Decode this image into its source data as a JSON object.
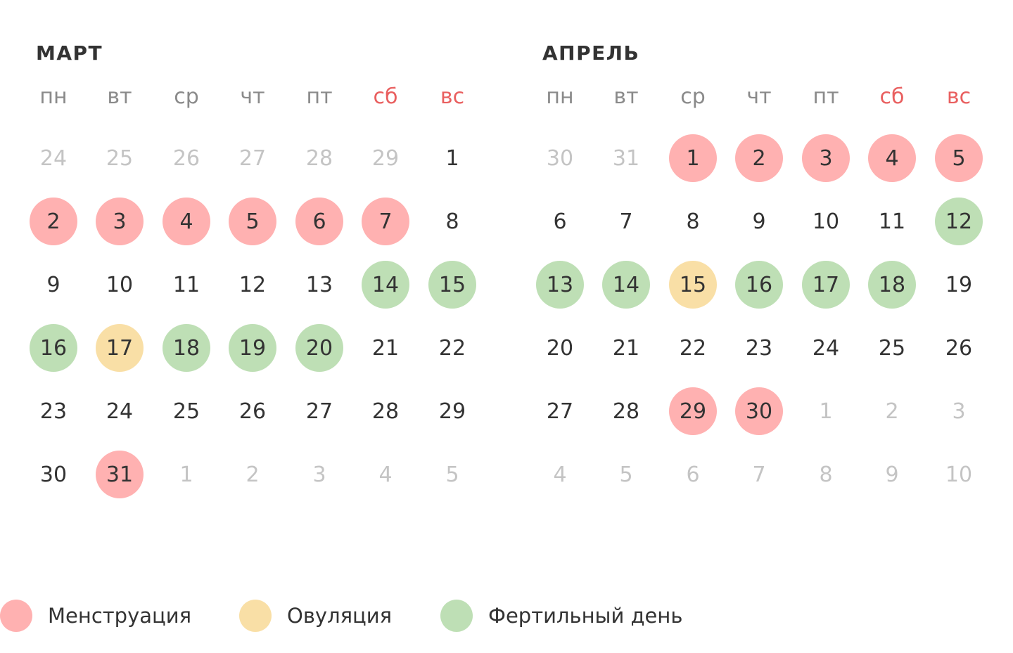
{
  "colors": {
    "menstruation": "#FFB1B1",
    "ovulation": "#F9DFA6",
    "fertile": "#BEDFB5",
    "text": "#333333",
    "muted": "#C4C4C4",
    "weekday": "#8A8A8A",
    "weekend": "#E95F5F"
  },
  "weekdays": [
    "пн",
    "вт",
    "ср",
    "чт",
    "пт",
    "сб",
    "вс"
  ],
  "months": [
    {
      "title": "МАРТ",
      "weeks": [
        [
          {
            "d": "24",
            "t": "muted"
          },
          {
            "d": "25",
            "t": "muted"
          },
          {
            "d": "26",
            "t": "muted"
          },
          {
            "d": "27",
            "t": "muted"
          },
          {
            "d": "28",
            "t": "muted"
          },
          {
            "d": "29",
            "t": "muted"
          },
          {
            "d": "1",
            "t": ""
          }
        ],
        [
          {
            "d": "2",
            "t": "menstruation"
          },
          {
            "d": "3",
            "t": "menstruation"
          },
          {
            "d": "4",
            "t": "menstruation"
          },
          {
            "d": "5",
            "t": "menstruation"
          },
          {
            "d": "6",
            "t": "menstruation"
          },
          {
            "d": "7",
            "t": "menstruation"
          },
          {
            "d": "8",
            "t": ""
          }
        ],
        [
          {
            "d": "9",
            "t": ""
          },
          {
            "d": "10",
            "t": ""
          },
          {
            "d": "11",
            "t": ""
          },
          {
            "d": "12",
            "t": ""
          },
          {
            "d": "13",
            "t": ""
          },
          {
            "d": "14",
            "t": "fertile"
          },
          {
            "d": "15",
            "t": "fertile"
          }
        ],
        [
          {
            "d": "16",
            "t": "fertile"
          },
          {
            "d": "17",
            "t": "ovulation"
          },
          {
            "d": "18",
            "t": "fertile"
          },
          {
            "d": "19",
            "t": "fertile"
          },
          {
            "d": "20",
            "t": "fertile"
          },
          {
            "d": "21",
            "t": ""
          },
          {
            "d": "22",
            "t": ""
          }
        ],
        [
          {
            "d": "23",
            "t": ""
          },
          {
            "d": "24",
            "t": ""
          },
          {
            "d": "25",
            "t": ""
          },
          {
            "d": "26",
            "t": ""
          },
          {
            "d": "27",
            "t": ""
          },
          {
            "d": "28",
            "t": ""
          },
          {
            "d": "29",
            "t": ""
          }
        ],
        [
          {
            "d": "30",
            "t": ""
          },
          {
            "d": "31",
            "t": "menstruation"
          },
          {
            "d": "1",
            "t": "muted"
          },
          {
            "d": "2",
            "t": "muted"
          },
          {
            "d": "3",
            "t": "muted"
          },
          {
            "d": "4",
            "t": "muted"
          },
          {
            "d": "5",
            "t": "muted"
          }
        ]
      ]
    },
    {
      "title": "АПРЕЛЬ",
      "weeks": [
        [
          {
            "d": "30",
            "t": "muted"
          },
          {
            "d": "31",
            "t": "muted"
          },
          {
            "d": "1",
            "t": "menstruation"
          },
          {
            "d": "2",
            "t": "menstruation"
          },
          {
            "d": "3",
            "t": "menstruation"
          },
          {
            "d": "4",
            "t": "menstruation"
          },
          {
            "d": "5",
            "t": "menstruation"
          }
        ],
        [
          {
            "d": "6",
            "t": ""
          },
          {
            "d": "7",
            "t": ""
          },
          {
            "d": "8",
            "t": ""
          },
          {
            "d": "9",
            "t": ""
          },
          {
            "d": "10",
            "t": ""
          },
          {
            "d": "11",
            "t": ""
          },
          {
            "d": "12",
            "t": "fertile"
          }
        ],
        [
          {
            "d": "13",
            "t": "fertile"
          },
          {
            "d": "14",
            "t": "fertile"
          },
          {
            "d": "15",
            "t": "ovulation"
          },
          {
            "d": "16",
            "t": "fertile"
          },
          {
            "d": "17",
            "t": "fertile"
          },
          {
            "d": "18",
            "t": "fertile"
          },
          {
            "d": "19",
            "t": ""
          }
        ],
        [
          {
            "d": "20",
            "t": ""
          },
          {
            "d": "21",
            "t": ""
          },
          {
            "d": "22",
            "t": ""
          },
          {
            "d": "23",
            "t": ""
          },
          {
            "d": "24",
            "t": ""
          },
          {
            "d": "25",
            "t": ""
          },
          {
            "d": "26",
            "t": ""
          }
        ],
        [
          {
            "d": "27",
            "t": ""
          },
          {
            "d": "28",
            "t": ""
          },
          {
            "d": "29",
            "t": "menstruation"
          },
          {
            "d": "30",
            "t": "menstruation"
          },
          {
            "d": "1",
            "t": "muted"
          },
          {
            "d": "2",
            "t": "muted"
          },
          {
            "d": "3",
            "t": "muted"
          }
        ],
        [
          {
            "d": "4",
            "t": "muted"
          },
          {
            "d": "5",
            "t": "muted"
          },
          {
            "d": "6",
            "t": "muted"
          },
          {
            "d": "7",
            "t": "muted"
          },
          {
            "d": "8",
            "t": "muted"
          },
          {
            "d": "9",
            "t": "muted"
          },
          {
            "d": "10",
            "t": "muted"
          }
        ]
      ]
    }
  ],
  "legend": [
    {
      "key": "menstruation",
      "label": "Менструация"
    },
    {
      "key": "ovulation",
      "label": "Овуляция"
    },
    {
      "key": "fertile",
      "label": "Фертильный день"
    }
  ]
}
